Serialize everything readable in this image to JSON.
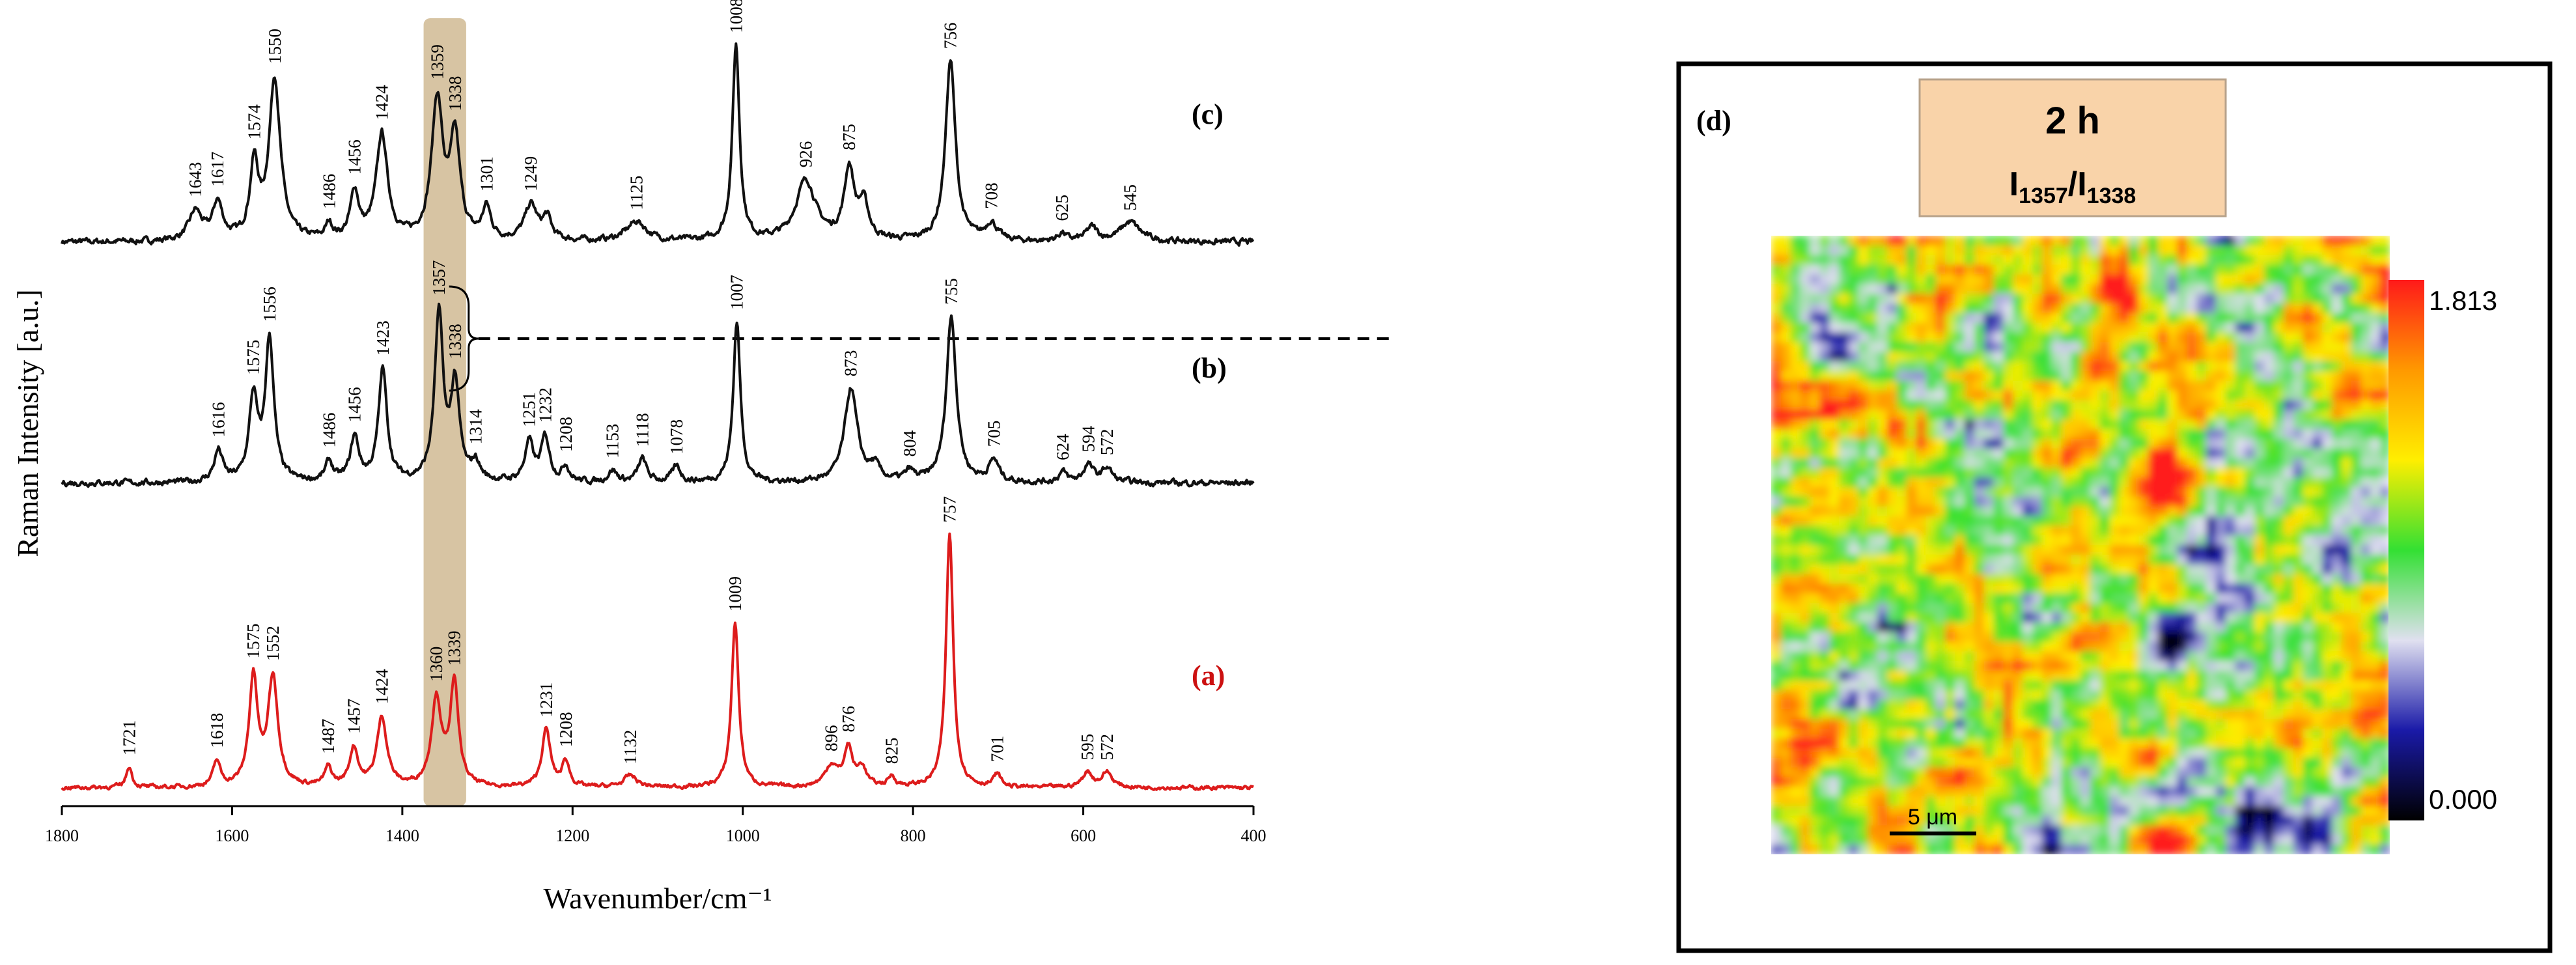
{
  "chart_data": [
    {
      "type": "line",
      "xlabel": "Wavenumber/cm⁻¹",
      "ylabel": "Raman Intensity [a.u.]",
      "xlim": [
        1800,
        400
      ],
      "xticks": [
        1800,
        1600,
        1400,
        1200,
        1000,
        800,
        600,
        400
      ],
      "highlight_range": [
        1375,
        1325
      ],
      "highlight_color": "#d7c4a3",
      "reference_line_label": "1357/1338 doublet (b)",
      "series": [
        {
          "id": "c",
          "name": "(c)",
          "label_color": "#000000",
          "color": "#111111",
          "baseline": 0.0,
          "noise": 0.045,
          "peaks": [
            {
              "x": 1643,
              "h": 0.3,
              "w": 9
            },
            {
              "x": 1617,
              "h": 0.38,
              "w": 7
            },
            {
              "x": 1574,
              "h": 0.75,
              "w": 6
            },
            {
              "x": 1550,
              "h": 1.65,
              "w": 8
            },
            {
              "x": 1486,
              "h": 0.15,
              "w": 5
            },
            {
              "x": 1456,
              "h": 0.48,
              "w": 6
            },
            {
              "x": 1424,
              "h": 1.08,
              "w": 8
            },
            {
              "x": 1359,
              "h": 1.42,
              "w": 8
            },
            {
              "x": 1338,
              "h": 1.02,
              "w": 7
            },
            {
              "x": 1301,
              "h": 0.32,
              "w": 6
            },
            {
              "x": 1249,
              "h": 0.36,
              "w": 9
            },
            {
              "x": 1230,
              "h": 0.22,
              "w": 6
            },
            {
              "x": 1125,
              "h": 0.2,
              "w": 14
            },
            {
              "x": 1008,
              "h": 2.0,
              "w": 5
            },
            {
              "x": 926,
              "h": 0.62,
              "w": 14
            },
            {
              "x": 875,
              "h": 0.72,
              "w": 7
            },
            {
              "x": 858,
              "h": 0.36,
              "w": 7
            },
            {
              "x": 756,
              "h": 1.85,
              "w": 7
            },
            {
              "x": 708,
              "h": 0.18,
              "w": 8
            },
            {
              "x": 625,
              "h": 0.08,
              "w": 6
            },
            {
              "x": 590,
              "h": 0.14,
              "w": 8
            },
            {
              "x": 545,
              "h": 0.2,
              "w": 14
            }
          ]
        },
        {
          "id": "b",
          "name": "(b)",
          "label_color": "#000000",
          "color": "#111111",
          "baseline": 0.0,
          "noise": 0.045,
          "peaks": [
            {
              "x": 1616,
              "h": 0.32,
              "w": 6
            },
            {
              "x": 1575,
              "h": 0.85,
              "w": 6
            },
            {
              "x": 1556,
              "h": 1.45,
              "w": 6
            },
            {
              "x": 1486,
              "h": 0.2,
              "w": 5
            },
            {
              "x": 1456,
              "h": 0.45,
              "w": 6
            },
            {
              "x": 1423,
              "h": 1.15,
              "w": 6
            },
            {
              "x": 1357,
              "h": 1.7,
              "w": 6
            },
            {
              "x": 1338,
              "h": 0.98,
              "w": 6
            },
            {
              "x": 1314,
              "h": 0.18,
              "w": 6
            },
            {
              "x": 1251,
              "h": 0.4,
              "w": 6
            },
            {
              "x": 1232,
              "h": 0.45,
              "w": 6
            },
            {
              "x": 1208,
              "h": 0.16,
              "w": 5
            },
            {
              "x": 1153,
              "h": 0.12,
              "w": 6
            },
            {
              "x": 1118,
              "h": 0.24,
              "w": 6
            },
            {
              "x": 1078,
              "h": 0.16,
              "w": 6
            },
            {
              "x": 1007,
              "h": 1.65,
              "w": 5
            },
            {
              "x": 873,
              "h": 0.96,
              "w": 9
            },
            {
              "x": 845,
              "h": 0.14,
              "w": 7
            },
            {
              "x": 804,
              "h": 0.1,
              "w": 6
            },
            {
              "x": 755,
              "h": 1.7,
              "w": 7
            },
            {
              "x": 705,
              "h": 0.22,
              "w": 7
            },
            {
              "x": 624,
              "h": 0.1,
              "w": 6
            },
            {
              "x": 594,
              "h": 0.18,
              "w": 7
            },
            {
              "x": 572,
              "h": 0.15,
              "w": 7
            }
          ]
        },
        {
          "id": "a",
          "name": "(a)",
          "label_color": "#cc1111",
          "color": "#dd1c1c",
          "baseline": 0.0,
          "noise": 0.035,
          "peaks": [
            {
              "x": 1721,
              "h": 0.25,
              "w": 4
            },
            {
              "x": 1618,
              "h": 0.3,
              "w": 5
            },
            {
              "x": 1575,
              "h": 1.28,
              "w": 6
            },
            {
              "x": 1552,
              "h": 1.28,
              "w": 7
            },
            {
              "x": 1487,
              "h": 0.22,
              "w": 5
            },
            {
              "x": 1457,
              "h": 0.45,
              "w": 6
            },
            {
              "x": 1424,
              "h": 0.82,
              "w": 7
            },
            {
              "x": 1360,
              "h": 1.02,
              "w": 7
            },
            {
              "x": 1339,
              "h": 1.2,
              "w": 6
            },
            {
              "x": 1231,
              "h": 0.68,
              "w": 6
            },
            {
              "x": 1208,
              "h": 0.3,
              "w": 5
            },
            {
              "x": 1132,
              "h": 0.14,
              "w": 9
            },
            {
              "x": 1009,
              "h": 1.95,
              "w": 5
            },
            {
              "x": 896,
              "h": 0.25,
              "w": 9
            },
            {
              "x": 876,
              "h": 0.45,
              "w": 6
            },
            {
              "x": 860,
              "h": 0.22,
              "w": 6
            },
            {
              "x": 825,
              "h": 0.12,
              "w": 5
            },
            {
              "x": 757,
              "h": 3.0,
              "w": 5
            },
            {
              "x": 701,
              "h": 0.15,
              "w": 5
            },
            {
              "x": 595,
              "h": 0.18,
              "w": 7
            },
            {
              "x": 572,
              "h": 0.18,
              "w": 7
            }
          ]
        }
      ],
      "peak_labels": {
        "c": [
          "1643",
          "1617",
          "1574",
          "1550",
          "1486",
          "1456",
          "1424",
          "1359",
          "1338",
          "1301",
          "1249",
          "1125",
          "1008",
          "926",
          "875",
          "756",
          "708",
          "625",
          "545"
        ],
        "b": [
          "1616",
          "1575",
          "1556",
          "1486",
          "1456",
          "1423",
          "1357",
          "1338",
          "1314",
          "1251",
          "1232",
          "1208",
          "1153",
          "1118",
          "1078",
          "1007",
          "873",
          "804",
          "755",
          "705",
          "624",
          "594",
          "572"
        ],
        "a": [
          "1721",
          "1618",
          "1575",
          "1552",
          "1487",
          "1457",
          "1424",
          "1360",
          "1339",
          "1231",
          "1208",
          "1132",
          "1009",
          "896",
          "876",
          "825",
          "757",
          "701",
          "595",
          "572"
        ]
      }
    },
    {
      "type": "heatmap",
      "panel_label": "(d)",
      "title": "2 h",
      "ratio_label": {
        "I": "I",
        "sub1": "1357",
        "sep": "/",
        "sub2": "1338"
      },
      "colorbar": {
        "max": "1.813",
        "min": "0.000",
        "colors": [
          "#000000",
          "#1a1aa8",
          "#e0e0f0",
          "#33e033",
          "#ffee00",
          "#ff9900",
          "#ff1a1a"
        ]
      },
      "scale_bar": "5 μm",
      "grid_size": 64,
      "value_distribution": "predominantly green-yellow (~1.0–1.2) with red hot spots (~1.5–1.8) and sparse blue (~0.6)"
    }
  ]
}
